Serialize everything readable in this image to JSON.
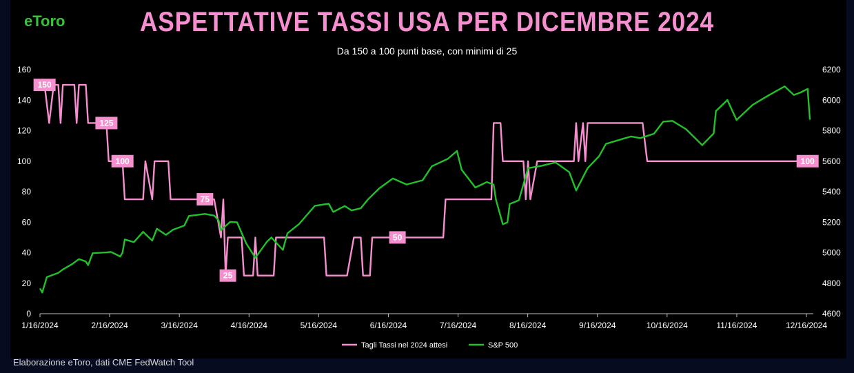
{
  "brand": {
    "logo": "eToro"
  },
  "header": {
    "title": "ASPETTATIVE TASSI USA PER DICEMBRE 2024",
    "subtitle": "Da 150 a 100  punti base, con minimi di 25"
  },
  "footer": {
    "source": "Elaborazione eToro, dati CME FedWatch Tool"
  },
  "colors": {
    "rates": "#f58fcf",
    "sp500": "#22c12b",
    "background": "#000000"
  },
  "chart_data": {
    "type": "line",
    "x_tick_labels": [
      "1/16/2024",
      "2/16/2024",
      "3/16/2024",
      "4/16/2024",
      "5/16/2024",
      "6/16/2024",
      "7/16/2024",
      "8/16/2024",
      "9/16/2024",
      "10/16/2024",
      "11/16/2024",
      "12/16/2024"
    ],
    "y_left": {
      "range": [
        0,
        160
      ],
      "ticks": [
        "0",
        "20",
        "40",
        "60",
        "80",
        "100",
        "120",
        "140",
        "160"
      ]
    },
    "y_right": {
      "range": [
        4600,
        6200
      ],
      "ticks": [
        "4600",
        "4800",
        "5000",
        "5200",
        "5400",
        "5600",
        "5800",
        "6000",
        "6200"
      ]
    },
    "xlim": [
      "2024-01-16",
      "2024-12-17"
    ],
    "legend_position": "bottom",
    "series": [
      {
        "name": "Tagli Tassi nel 2024 attesi",
        "axis": "left",
        "color": "#f58fcf",
        "points": [
          [
            "2024-01-18",
            150
          ],
          [
            "2024-01-20",
            125
          ],
          [
            "2024-01-22",
            150
          ],
          [
            "2024-01-24",
            150
          ],
          [
            "2024-01-25",
            125
          ],
          [
            "2024-01-26",
            150
          ],
          [
            "2024-01-29",
            150
          ],
          [
            "2024-01-31",
            150
          ],
          [
            "2024-02-01",
            125
          ],
          [
            "2024-02-02",
            150
          ],
          [
            "2024-02-05",
            150
          ],
          [
            "2024-02-06",
            125
          ],
          [
            "2024-02-12",
            125
          ],
          [
            "2024-02-13",
            125
          ],
          [
            "2024-02-14",
            125
          ],
          [
            "2024-02-15",
            100
          ],
          [
            "2024-02-21",
            100
          ],
          [
            "2024-02-22",
            75
          ],
          [
            "2024-03-01",
            75
          ],
          [
            "2024-03-02",
            100
          ],
          [
            "2024-03-05",
            75
          ],
          [
            "2024-03-06",
            100
          ],
          [
            "2024-03-12",
            100
          ],
          [
            "2024-03-13",
            75
          ],
          [
            "2024-03-28",
            75
          ],
          [
            "2024-04-01",
            75
          ],
          [
            "2024-04-04",
            50
          ],
          [
            "2024-04-05",
            75
          ],
          [
            "2024-04-06",
            25
          ],
          [
            "2024-04-07",
            50
          ],
          [
            "2024-04-13",
            50
          ],
          [
            "2024-04-14",
            25
          ],
          [
            "2024-04-18",
            25
          ],
          [
            "2024-04-19",
            50
          ],
          [
            "2024-04-20",
            25
          ],
          [
            "2024-04-27",
            25
          ],
          [
            "2024-04-28",
            50
          ],
          [
            "2024-05-19",
            50
          ],
          [
            "2024-05-20",
            25
          ],
          [
            "2024-05-29",
            25
          ],
          [
            "2024-06-01",
            50
          ],
          [
            "2024-06-04",
            50
          ],
          [
            "2024-06-05",
            25
          ],
          [
            "2024-06-08",
            25
          ],
          [
            "2024-06-09",
            50
          ],
          [
            "2024-06-29",
            50
          ],
          [
            "2024-07-10",
            50
          ],
          [
            "2024-07-11",
            75
          ],
          [
            "2024-07-26",
            75
          ],
          [
            "2024-07-27",
            75
          ],
          [
            "2024-07-31",
            75
          ],
          [
            "2024-08-01",
            125
          ],
          [
            "2024-08-04",
            125
          ],
          [
            "2024-08-05",
            100
          ],
          [
            "2024-08-14",
            100
          ],
          [
            "2024-08-15",
            75
          ],
          [
            "2024-08-16",
            100
          ],
          [
            "2024-08-17",
            75
          ],
          [
            "2024-08-20",
            100
          ],
          [
            "2024-09-02",
            100
          ],
          [
            "2024-09-03",
            100
          ],
          [
            "2024-09-05",
            100
          ],
          [
            "2024-09-06",
            125
          ],
          [
            "2024-09-07",
            100
          ],
          [
            "2024-09-09",
            125
          ],
          [
            "2024-09-10",
            100
          ],
          [
            "2024-09-11",
            125
          ],
          [
            "2024-10-05",
            125
          ],
          [
            "2024-10-07",
            100
          ],
          [
            "2024-12-17",
            100
          ]
        ]
      },
      {
        "name": "S&P 500",
        "axis": "right",
        "color": "#22c12b",
        "points": [
          [
            "2024-01-16",
            4766
          ],
          [
            "2024-01-17",
            4739
          ],
          [
            "2024-01-19",
            4840
          ],
          [
            "2024-01-24",
            4868
          ],
          [
            "2024-01-26",
            4890
          ],
          [
            "2024-01-30",
            4925
          ],
          [
            "2024-02-02",
            4958
          ],
          [
            "2024-02-05",
            4942
          ],
          [
            "2024-02-06",
            4918
          ],
          [
            "2024-02-08",
            4997
          ],
          [
            "2024-02-14",
            5002
          ],
          [
            "2024-02-16",
            5005
          ],
          [
            "2024-02-20",
            4975
          ],
          [
            "2024-02-21",
            5000
          ],
          [
            "2024-02-22",
            5087
          ],
          [
            "2024-02-26",
            5069
          ],
          [
            "2024-03-01",
            5137
          ],
          [
            "2024-03-05",
            5079
          ],
          [
            "2024-03-07",
            5157
          ],
          [
            "2024-03-11",
            5117
          ],
          [
            "2024-03-14",
            5150
          ],
          [
            "2024-03-19",
            5178
          ],
          [
            "2024-03-21",
            5241
          ],
          [
            "2024-03-28",
            5254
          ],
          [
            "2024-04-01",
            5243
          ],
          [
            "2024-04-03",
            5211
          ],
          [
            "2024-04-04",
            5147
          ],
          [
            "2024-04-08",
            5202
          ],
          [
            "2024-04-11",
            5199
          ],
          [
            "2024-04-15",
            5061
          ],
          [
            "2024-04-19",
            4967
          ],
          [
            "2024-04-24",
            5071
          ],
          [
            "2024-04-26",
            5100
          ],
          [
            "2024-05-01",
            5018
          ],
          [
            "2024-05-03",
            5127
          ],
          [
            "2024-05-08",
            5187
          ],
          [
            "2024-05-15",
            5308
          ],
          [
            "2024-05-21",
            5321
          ],
          [
            "2024-05-23",
            5267
          ],
          [
            "2024-05-28",
            5306
          ],
          [
            "2024-05-31",
            5277
          ],
          [
            "2024-06-04",
            5291
          ],
          [
            "2024-06-07",
            5347
          ],
          [
            "2024-06-12",
            5421
          ],
          [
            "2024-06-18",
            5487
          ],
          [
            "2024-06-24",
            5447
          ],
          [
            "2024-07-01",
            5475
          ],
          [
            "2024-07-05",
            5567
          ],
          [
            "2024-07-12",
            5615
          ],
          [
            "2024-07-16",
            5667
          ],
          [
            "2024-07-18",
            5544
          ],
          [
            "2024-07-24",
            5427
          ],
          [
            "2024-07-29",
            5463
          ],
          [
            "2024-08-01",
            5446
          ],
          [
            "2024-08-02",
            5346
          ],
          [
            "2024-08-05",
            5186
          ],
          [
            "2024-08-07",
            5199
          ],
          [
            "2024-08-08",
            5319
          ],
          [
            "2024-08-12",
            5344
          ],
          [
            "2024-08-16",
            5554
          ],
          [
            "2024-08-22",
            5570
          ],
          [
            "2024-08-28",
            5592
          ],
          [
            "2024-09-03",
            5528
          ],
          [
            "2024-09-06",
            5408
          ],
          [
            "2024-09-11",
            5554
          ],
          [
            "2024-09-16",
            5633
          ],
          [
            "2024-09-19",
            5713
          ],
          [
            "2024-09-26",
            5745
          ],
          [
            "2024-09-30",
            5762
          ],
          [
            "2024-10-04",
            5751
          ],
          [
            "2024-10-10",
            5780
          ],
          [
            "2024-10-14",
            5859
          ],
          [
            "2024-10-18",
            5864
          ],
          [
            "2024-10-24",
            5809
          ],
          [
            "2024-10-31",
            5705
          ],
          [
            "2024-11-05",
            5782
          ],
          [
            "2024-11-06",
            5929
          ],
          [
            "2024-11-11",
            6001
          ],
          [
            "2024-11-15",
            5870
          ],
          [
            "2024-11-22",
            5969
          ],
          [
            "2024-11-29",
            6032
          ],
          [
            "2024-12-06",
            6090
          ],
          [
            "2024-12-10",
            6034
          ],
          [
            "2024-12-13",
            6051
          ],
          [
            "2024-12-16",
            6074
          ],
          [
            "2024-12-17",
            5872
          ]
        ]
      }
    ],
    "point_labels": [
      {
        "text": "150",
        "date": "2024-01-18",
        "value": 150
      },
      {
        "text": "125",
        "date": "2024-02-14",
        "value": 125
      },
      {
        "text": "100",
        "date": "2024-02-21",
        "value": 100
      },
      {
        "text": "75",
        "date": "2024-03-28",
        "value": 75
      },
      {
        "text": "25",
        "date": "2024-04-07",
        "value": 25
      },
      {
        "text": "50",
        "date": "2024-06-20",
        "value": 50
      },
      {
        "text": "100",
        "date": "2024-12-16",
        "value": 100
      }
    ]
  }
}
